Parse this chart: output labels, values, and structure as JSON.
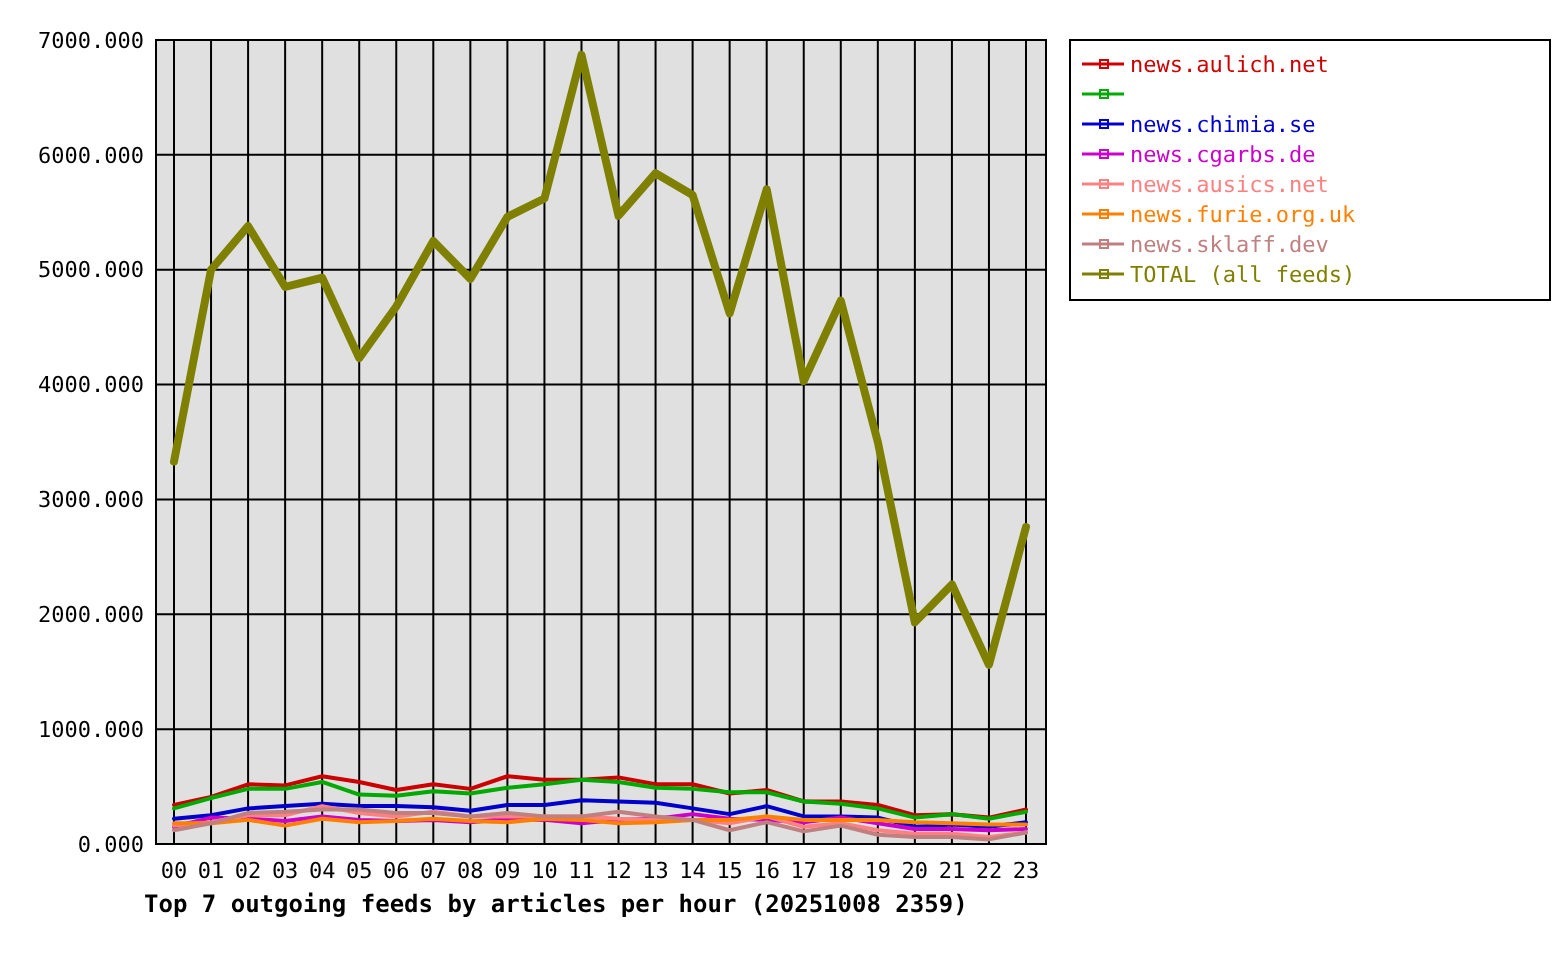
{
  "chart_data": {
    "type": "line",
    "title": "Top 7 outgoing feeds by articles per hour (20251008 2359)",
    "categories": [
      "00",
      "01",
      "02",
      "03",
      "04",
      "05",
      "06",
      "07",
      "08",
      "09",
      "10",
      "11",
      "12",
      "13",
      "14",
      "15",
      "16",
      "17",
      "18",
      "19",
      "20",
      "21",
      "22",
      "23"
    ],
    "ylim": [
      0,
      7000
    ],
    "yticks": [
      {
        "value": 0,
        "label": "0.000"
      },
      {
        "value": 1000,
        "label": "1000.000"
      },
      {
        "value": 2000,
        "label": "2000.000"
      },
      {
        "value": 3000,
        "label": "3000.000"
      },
      {
        "value": 4000,
        "label": "4000.000"
      },
      {
        "value": 5000,
        "label": "5000.000"
      },
      {
        "value": 6000,
        "label": "6000.000"
      },
      {
        "value": 7000,
        "label": "7000.000"
      }
    ],
    "grid": true,
    "legend": "top right",
    "series": [
      {
        "name": "news.aulich.net",
        "color": "#cc0000",
        "values": [
          340,
          410,
          520,
          510,
          590,
          540,
          470,
          520,
          480,
          590,
          560,
          560,
          580,
          520,
          520,
          440,
          470,
          370,
          370,
          340,
          250,
          260,
          230,
          300
        ]
      },
      {
        "color": "#00aa00",
        "values": [
          310,
          400,
          480,
          480,
          540,
          430,
          420,
          460,
          440,
          490,
          520,
          560,
          540,
          490,
          480,
          450,
          450,
          370,
          350,
          310,
          230,
          260,
          220,
          280
        ]
      },
      {
        "name": "news.chimia.se",
        "color": "#0000cc",
        "values": [
          220,
          250,
          310,
          330,
          350,
          330,
          330,
          320,
          290,
          340,
          340,
          380,
          370,
          360,
          310,
          260,
          330,
          240,
          240,
          230,
          150,
          170,
          150,
          190
        ]
      },
      {
        "name": "news.cgarbs.de",
        "color": "#cc00cc",
        "values": [
          150,
          230,
          220,
          200,
          240,
          210,
          200,
          210,
          190,
          220,
          210,
          180,
          210,
          220,
          260,
          220,
          210,
          190,
          230,
          180,
          130,
          130,
          120,
          130
        ]
      },
      {
        "name": "news.ausics.net",
        "color": "#ff8080",
        "values": [
          160,
          190,
          250,
          250,
          330,
          270,
          240,
          280,
          240,
          240,
          240,
          240,
          220,
          210,
          210,
          180,
          240,
          150,
          180,
          120,
          90,
          90,
          60,
          100
        ]
      },
      {
        "name": "news.furie.org.uk",
        "color": "#ff8000",
        "values": [
          180,
          180,
          210,
          160,
          220,
          190,
          200,
          220,
          200,
          190,
          220,
          210,
          180,
          190,
          210,
          210,
          240,
          210,
          210,
          210,
          190,
          180,
          170,
          170
        ]
      },
      {
        "name": "news.sklaff.dev",
        "color": "#c08080",
        "values": [
          120,
          180,
          270,
          280,
          300,
          300,
          270,
          270,
          240,
          270,
          240,
          240,
          280,
          240,
          210,
          120,
          190,
          110,
          160,
          80,
          60,
          60,
          40,
          100
        ]
      },
      {
        "name": "TOTAL (all feeds)",
        "color": "#808000",
        "values": [
          3330,
          5000,
          5380,
          4850,
          4930,
          4230,
          4680,
          5250,
          4920,
          5460,
          5620,
          6870,
          5470,
          5840,
          5650,
          4620,
          5700,
          4030,
          4730,
          3500,
          1930,
          2260,
          1560,
          2760
        ]
      }
    ]
  }
}
